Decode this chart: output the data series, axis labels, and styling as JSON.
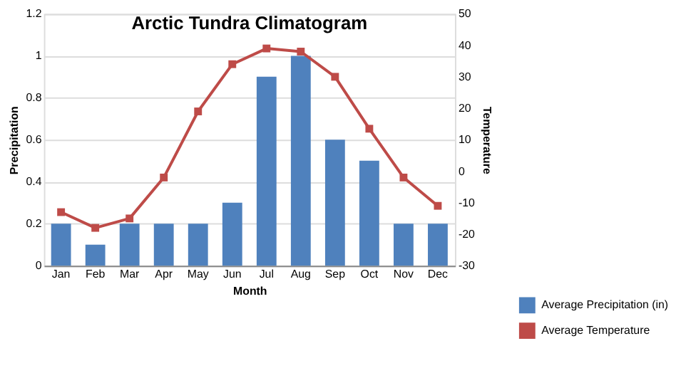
{
  "chart_data": {
    "type": "bar",
    "title": "Arctic Tundra Climatogram",
    "xlabel": "Month",
    "ylabel": "Precipitation",
    "y2label": "Temperature",
    "categories": [
      "Jan",
      "Feb",
      "Mar",
      "Apr",
      "May",
      "Jun",
      "Jul",
      "Aug",
      "Sep",
      "Oct",
      "Nov",
      "Dec"
    ],
    "series": [
      {
        "name": "Average Precipitation (in)",
        "color": "#4f81bd",
        "values": [
          0.2,
          0.1,
          0.2,
          0.2,
          0.2,
          0.3,
          0.9,
          1.0,
          0.6,
          0.5,
          0.2,
          0.2
        ]
      },
      {
        "name": "Average Temperature",
        "type": "line",
        "axis": "y2",
        "color": "#be4b48",
        "marker": "square",
        "values": [
          -13,
          -18,
          -15,
          -2,
          19,
          34,
          39,
          38,
          30,
          13.5,
          -2,
          -11
        ]
      }
    ],
    "ylim": [
      0,
      1.2
    ],
    "yticks": [
      0,
      0.2,
      0.4,
      0.6,
      0.8,
      1,
      1.2
    ],
    "y2lim": [
      -30,
      50
    ],
    "y2ticks": [
      -30,
      -20,
      -10,
      0,
      10,
      20,
      30,
      40,
      50
    ],
    "grid": "y",
    "legend": "bottom right"
  }
}
